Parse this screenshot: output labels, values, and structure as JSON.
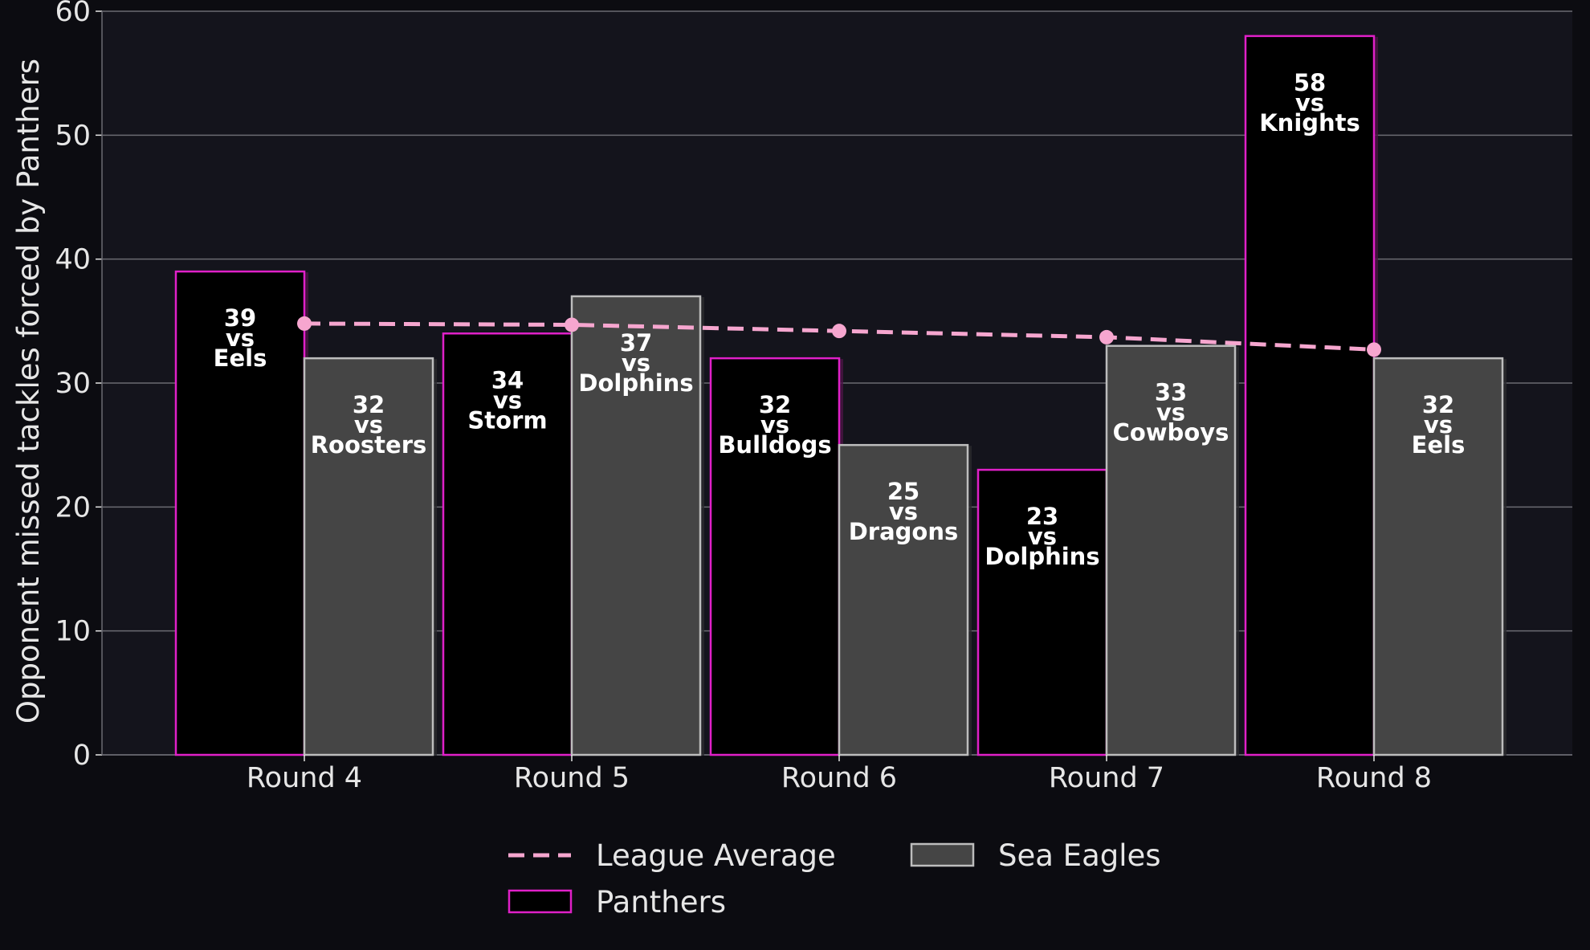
{
  "colors": {
    "page_background": "#0c0c11",
    "plot_background": "#14141c",
    "grid": "#6b6b72",
    "text": "#e6e6e6",
    "panthers_fill": "#000000",
    "panthers_edge": "#e020c8",
    "sea_eagles_fill": "#454545",
    "sea_eagles_edge": "#bdbdbd",
    "average_line": "#f6a6cf"
  },
  "legend": {
    "average_label": "League Average",
    "panthers_label": "Panthers",
    "sea_eagles_label": "Sea Eagles"
  },
  "chart_data": {
    "type": "bar",
    "ylabel": "Opponent missed tackles forced by Panthers",
    "xlabel": "",
    "ylim": [
      0,
      60
    ],
    "yticks": [
      0,
      10,
      20,
      30,
      40,
      50,
      60
    ],
    "grid": true,
    "legend_position": "bottom-center",
    "categories": [
      "Round 4",
      "Round 5",
      "Round 6",
      "Round 7",
      "Round 8"
    ],
    "series": [
      {
        "name": "Panthers",
        "values": [
          39,
          34,
          32,
          23,
          58
        ],
        "labels": [
          "39\nvs\nEels",
          "34\nvs\nStorm",
          "32\nvs\nBulldogs",
          "23\nvs\nDolphins",
          "58\nvs\nKnights"
        ]
      },
      {
        "name": "Sea Eagles",
        "values": [
          32,
          37,
          25,
          33,
          32
        ],
        "labels": [
          "32\nvs\nRoosters",
          "37\nvs\nDolphins",
          "25\nvs\nDragons",
          "33\nvs\nCowboys",
          "32\nvs\nEels"
        ]
      },
      {
        "name": "League Average",
        "type": "line",
        "values": [
          34.8,
          34.7,
          34.2,
          33.7,
          32.7
        ]
      }
    ]
  }
}
